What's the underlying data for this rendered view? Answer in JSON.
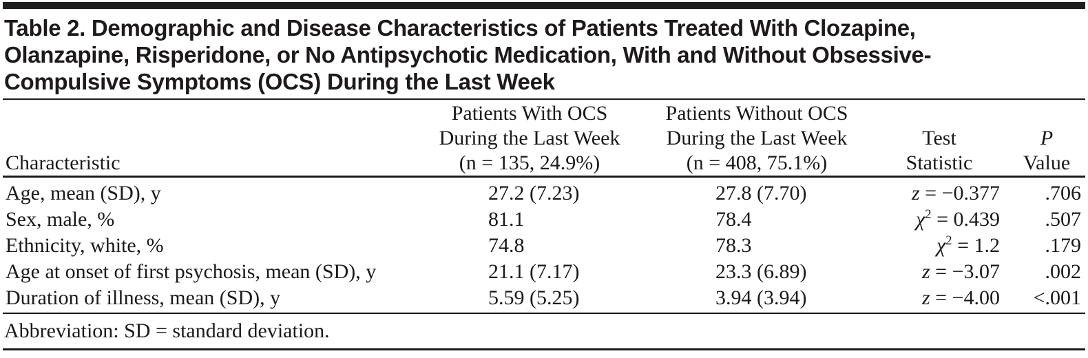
{
  "title": "Table 2. Demographic and Disease Characteristics of Patients Treated With Clozapine, Olanzapine, Risperidone, or No Antipsychotic Medication, With and Without Obsessive-Compulsive Symptoms (OCS) During the Last Week",
  "columns": {
    "characteristic": "Characteristic",
    "with_ocs": [
      "Patients With OCS",
      "During the Last Week",
      "(n = 135, 24.9%)"
    ],
    "without_ocs": [
      "Patients Without OCS",
      "During the Last Week",
      "(n = 408, 75.1%)"
    ],
    "test_statistic": [
      "Test",
      "Statistic"
    ],
    "p_value": [
      "P",
      "Value"
    ]
  },
  "rows": [
    {
      "characteristic": "Age, mean (SD), y",
      "with_ocs": "27.2 (7.23)",
      "without_ocs": "27.8 (7.70)",
      "stat": {
        "symbol": "z",
        "sup": "",
        "eq": " = −0.377"
      },
      "p": ".706"
    },
    {
      "characteristic": "Sex, male, %",
      "with_ocs": "81.1",
      "without_ocs": "78.4",
      "stat": {
        "symbol": "χ",
        "sup": "2",
        "eq": " = 0.439"
      },
      "p": ".507"
    },
    {
      "characteristic": "Ethnicity, white, %",
      "with_ocs": "74.8",
      "without_ocs": "78.3",
      "stat": {
        "symbol": "χ",
        "sup": "2",
        "eq": " = 1.2"
      },
      "p": ".179"
    },
    {
      "characteristic": "Age at onset of first psychosis, mean (SD), y",
      "with_ocs": "21.1 (7.17)",
      "without_ocs": "23.3 (6.89)",
      "stat": {
        "symbol": "z",
        "sup": "",
        "eq": " = −3.07"
      },
      "p": ".002"
    },
    {
      "characteristic": "Duration of illness, mean (SD), y",
      "with_ocs": "5.59 (5.25)",
      "without_ocs": "3.94 (3.94)",
      "stat": {
        "symbol": "z",
        "sup": "",
        "eq": " = −4.00"
      },
      "p": "<.001"
    }
  ],
  "footnote": "Abbreviation: SD = standard deviation.",
  "colors": {
    "text": "#1b1918",
    "rule": "#221e1f",
    "background": "#ffffff"
  },
  "chart_data": {
    "type": "table",
    "title": "Table 2. Demographic and Disease Characteristics of Patients Treated With Clozapine, Olanzapine, Risperidone, or No Antipsychotic Medication, With and Without Obsessive-Compulsive Symptoms (OCS) During the Last Week",
    "column_headers": [
      "Characteristic",
      "Patients With OCS During the Last Week (n = 135, 24.9%)",
      "Patients Without OCS During the Last Week (n = 408, 75.1%)",
      "Test Statistic",
      "P Value"
    ],
    "cells": [
      [
        "Age, mean (SD), y",
        "27.2 (7.23)",
        "27.8 (7.70)",
        "z = −0.377",
        ".706"
      ],
      [
        "Sex, male, %",
        "81.1",
        "78.4",
        "χ2 = 0.439",
        ".507"
      ],
      [
        "Ethnicity, white, %",
        "74.8",
        "78.3",
        "χ2 = 1.2",
        ".179"
      ],
      [
        "Age at onset of first psychosis, mean (SD), y",
        "21.1 (7.17)",
        "23.3 (6.89)",
        "z = −3.07",
        ".002"
      ],
      [
        "Duration of illness, mean (SD), y",
        "5.59 (5.25)",
        "3.94 (3.94)",
        "z = −4.00",
        "<.001"
      ]
    ],
    "footnote": "Abbreviation: SD = standard deviation."
  }
}
